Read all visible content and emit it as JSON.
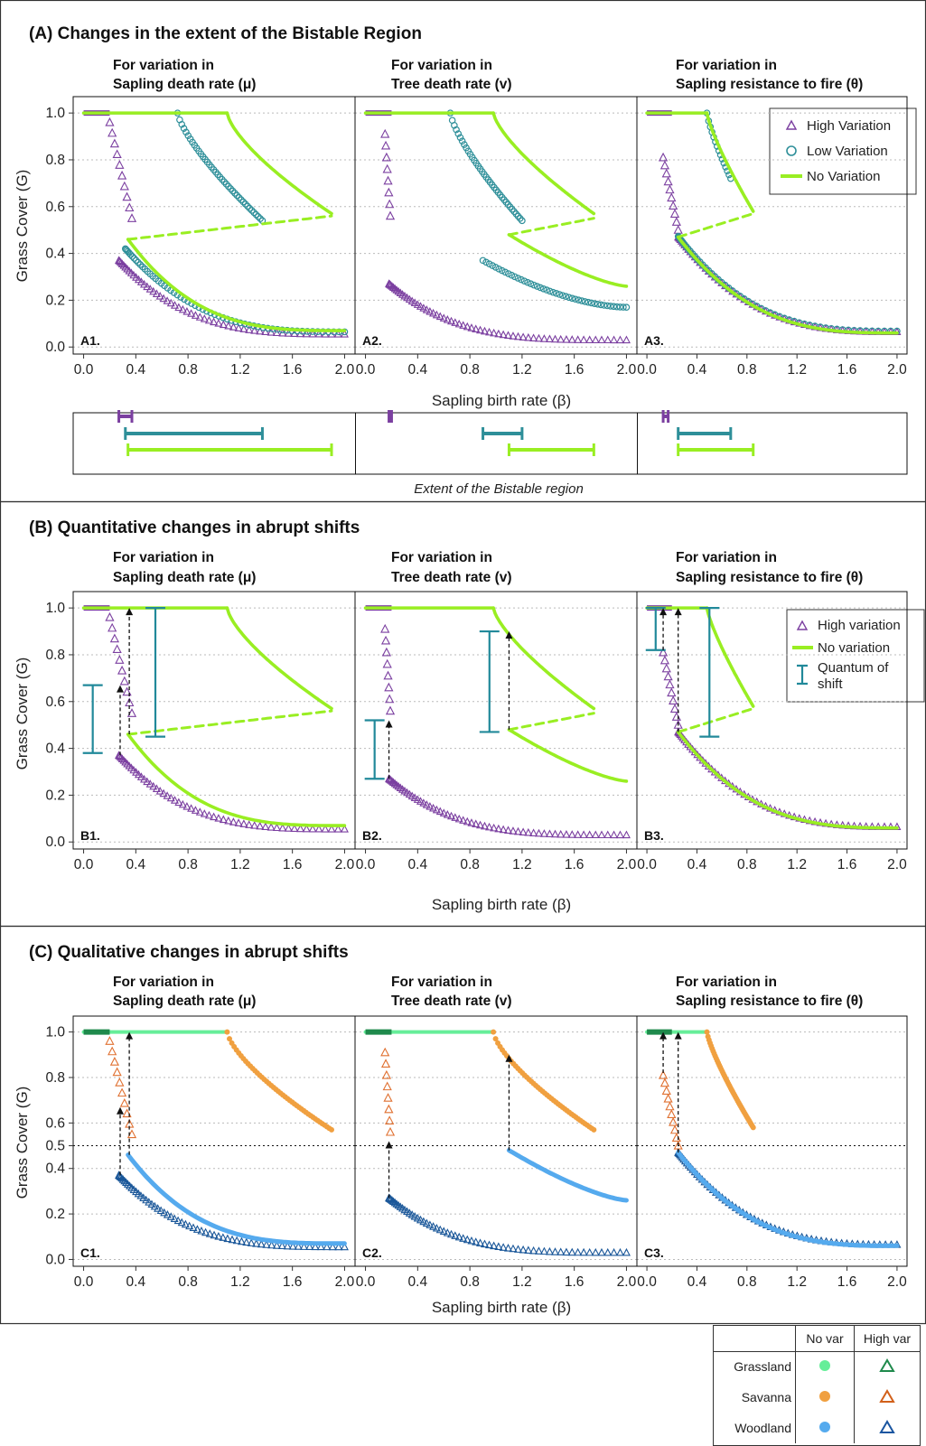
{
  "sections": [
    {
      "id": "A",
      "title": "(A) Changes in the extent of the Bistable Region",
      "caption": "Extent of the Bistable region",
      "legend": [
        {
          "label": "High Variation",
          "marker": "triangle",
          "color": "#7b3fa0"
        },
        {
          "label": "Low Variation",
          "marker": "circle",
          "color": "#2e8f99"
        },
        {
          "label": "No Variation",
          "marker": "line",
          "color": "#99ee22"
        }
      ]
    },
    {
      "id": "B",
      "title": "(B) Quantitative changes in abrupt shifts",
      "legend": [
        {
          "label": "High variation",
          "marker": "triangle",
          "color": "#7b3fa0"
        },
        {
          "label": "No variation",
          "marker": "line",
          "color": "#99ee22"
        },
        {
          "label": "Quantum of shift",
          "marker": "errorbar",
          "color": "#21899a"
        }
      ]
    },
    {
      "id": "C",
      "title": "(C) Qualitative changes in abrupt shifts"
    }
  ],
  "columns": [
    {
      "line1": "For variation in",
      "line2": "Sapling death rate (μ)"
    },
    {
      "line1": "For variation in",
      "line2": "Tree death rate (v)"
    },
    {
      "line1": "For variation in",
      "line2": "Sapling resistance to fire (θ)"
    }
  ],
  "axes": {
    "ylabel": "Grass Cover (G)",
    "xlabel": "Sapling birth rate (β)",
    "xticks": [
      "0.0",
      "0.4",
      "0.8",
      "1.2",
      "1.6",
      "2.0"
    ],
    "yticks": [
      "0.0",
      "0.2",
      "0.4",
      "0.6",
      "0.8",
      "1.0"
    ],
    "yticks_C": [
      "0.0",
      "0.2",
      "0.4",
      "0.5",
      "0.6",
      "0.8",
      "1.0"
    ],
    "xlim": [
      -0.08,
      2.08
    ],
    "ylim": [
      -0.03,
      1.07
    ]
  },
  "panel_labels": {
    "A": [
      "A1.",
      "A2.",
      "A3."
    ],
    "B": [
      "B1.",
      "B2.",
      "B3."
    ],
    "C": [
      "C1.",
      "C2.",
      "C3."
    ]
  },
  "state_table": {
    "headers": [
      "",
      "No var",
      "High var"
    ],
    "rows": [
      {
        "label": "Grassland",
        "color": "#66ee99",
        "tri": "#1f8a4c"
      },
      {
        "label": "Savanna",
        "color": "#f0a040",
        "tri": "#d2601a"
      },
      {
        "label": "Woodland",
        "color": "#55aaee",
        "tri": "#1a55a0"
      }
    ]
  },
  "colors": {
    "high": "#7b3fa0",
    "low": "#2e8f99",
    "none": "#99ee22",
    "quantum": "#21899a",
    "grassland": "#66ee99",
    "savanna": "#f0a040",
    "woodland_light": "#55aaee",
    "woodland_dark": "#1a5799",
    "savanna_tri": "#e07030"
  },
  "chart_data": [
    {
      "type": "scatter",
      "panel": "A1",
      "series": [
        {
          "name": "No Variation",
          "segments": [
            {
              "kind": "line",
              "x": [
                0,
                1.1
              ],
              "y": [
                1.0,
                1.0
              ]
            },
            {
              "kind": "curve",
              "x": [
                1.1,
                1.9
              ],
              "y": [
                1.0,
                0.57
              ]
            },
            {
              "kind": "dashed",
              "x": [
                0.34,
                1.9
              ],
              "y": [
                0.46,
                0.56
              ]
            },
            {
              "kind": "curve",
              "x": [
                0.34,
                2.0
              ],
              "y": [
                0.46,
                0.07
              ]
            }
          ]
        },
        {
          "name": "Low Variation",
          "segments": [
            {
              "kind": "line",
              "x": [
                0,
                0.72
              ],
              "y": [
                1.0,
                1.0
              ]
            },
            {
              "kind": "curve",
              "x": [
                0.72,
                1.37
              ],
              "y": [
                1.0,
                0.54
              ]
            },
            {
              "kind": "curve",
              "x": [
                0.32,
                2.0
              ],
              "y": [
                0.42,
                0.065
              ]
            }
          ]
        },
        {
          "name": "High Variation",
          "segments": [
            {
              "kind": "line",
              "x": [
                0,
                0.2
              ],
              "y": [
                1.0,
                1.0
              ]
            },
            {
              "kind": "curve",
              "x": [
                0.2,
                0.37
              ],
              "y": [
                0.96,
                0.55
              ]
            },
            {
              "kind": "curve",
              "x": [
                0.27,
                2.0
              ],
              "y": [
                0.37,
                0.055
              ]
            }
          ]
        }
      ],
      "bistable_extent": {
        "High Variation": [
          0.27,
          0.37
        ],
        "Low Variation": [
          0.32,
          1.37
        ],
        "No Variation": [
          0.34,
          1.9
        ]
      }
    },
    {
      "type": "scatter",
      "panel": "A2",
      "series": [
        {
          "name": "No Variation",
          "segments": [
            {
              "kind": "line",
              "x": [
                0,
                0.98
              ],
              "y": [
                1.0,
                1.0
              ]
            },
            {
              "kind": "curve",
              "x": [
                0.98,
                1.75
              ],
              "y": [
                1.0,
                0.57
              ]
            },
            {
              "kind": "dashed",
              "x": [
                1.1,
                1.75
              ],
              "y": [
                0.48,
                0.55
              ]
            },
            {
              "kind": "curve",
              "x": [
                1.1,
                2.0
              ],
              "y": [
                0.48,
                0.26
              ]
            }
          ]
        },
        {
          "name": "Low Variation",
          "segments": [
            {
              "kind": "line",
              "x": [
                0,
                0.65
              ],
              "y": [
                1.0,
                1.0
              ]
            },
            {
              "kind": "curve",
              "x": [
                0.65,
                1.2
              ],
              "y": [
                1.0,
                0.54
              ]
            },
            {
              "kind": "curve",
              "x": [
                0.9,
                2.0
              ],
              "y": [
                0.37,
                0.17
              ]
            }
          ]
        },
        {
          "name": "High Variation",
          "segments": [
            {
              "kind": "line",
              "x": [
                0,
                0.2
              ],
              "y": [
                1.0,
                1.0
              ]
            },
            {
              "kind": "curve",
              "x": [
                0.15,
                0.2
              ],
              "y": [
                0.91,
                0.55
              ]
            },
            {
              "kind": "curve",
              "x": [
                0.18,
                2.0
              ],
              "y": [
                0.27,
                0.03
              ]
            }
          ]
        }
      ],
      "bistable_extent": {
        "High Variation": [
          0.18,
          0.2
        ],
        "Low Variation": [
          0.9,
          1.2
        ],
        "No Variation": [
          1.1,
          1.75
        ]
      }
    },
    {
      "type": "scatter",
      "panel": "A3",
      "series": [
        {
          "name": "No Variation",
          "segments": [
            {
              "kind": "line",
              "x": [
                0,
                0.48
              ],
              "y": [
                1.0,
                1.0
              ]
            },
            {
              "kind": "curve",
              "x": [
                0.48,
                0.85
              ],
              "y": [
                1.0,
                0.58
              ]
            },
            {
              "kind": "dashed",
              "x": [
                0.25,
                0.85
              ],
              "y": [
                0.47,
                0.57
              ]
            },
            {
              "kind": "curve",
              "x": [
                0.25,
                2.0
              ],
              "y": [
                0.47,
                0.06
              ]
            }
          ]
        },
        {
          "name": "Low Variation",
          "segments": [
            {
              "kind": "line",
              "x": [
                0,
                0.48
              ],
              "y": [
                1.0,
                1.0
              ]
            },
            {
              "kind": "curve",
              "x": [
                0.48,
                0.67
              ],
              "y": [
                1.0,
                0.72
              ]
            },
            {
              "kind": "curve",
              "x": [
                0.25,
                2.0
              ],
              "y": [
                0.47,
                0.065
              ]
            }
          ]
        },
        {
          "name": "High Variation",
          "segments": [
            {
              "kind": "line",
              "x": [
                0,
                0.2
              ],
              "y": [
                1.0,
                1.0
              ]
            },
            {
              "kind": "curve",
              "x": [
                0.13,
                0.25
              ],
              "y": [
                0.81,
                0.5
              ]
            },
            {
              "kind": "curve",
              "x": [
                0.25,
                2.0
              ],
              "y": [
                0.47,
                0.065
              ]
            }
          ]
        }
      ],
      "bistable_extent": {
        "High Variation": [
          0.13,
          0.17
        ],
        "Low Variation": [
          0.25,
          0.67
        ],
        "No Variation": [
          0.25,
          0.85
        ]
      }
    },
    {
      "type": "scatter",
      "panel": "B1",
      "quantum_of_shift": [
        {
          "x": 0.07,
          "y": [
            0.38,
            0.67
          ]
        },
        {
          "x": 0.55,
          "y": [
            0.45,
            1.0
          ]
        }
      ],
      "arrows": [
        {
          "x": 0.28,
          "y": [
            0.37,
            0.67
          ]
        },
        {
          "x": 0.35,
          "y": [
            0.46,
            1.0
          ]
        }
      ]
    },
    {
      "type": "scatter",
      "panel": "B2",
      "quantum_of_shift": [
        {
          "x": 0.07,
          "y": [
            0.27,
            0.52
          ]
        },
        {
          "x": 0.95,
          "y": [
            0.47,
            0.9
          ]
        }
      ],
      "arrows": [
        {
          "x": 0.18,
          "y": [
            0.27,
            0.52
          ]
        },
        {
          "x": 1.1,
          "y": [
            0.48,
            0.9
          ]
        }
      ]
    },
    {
      "type": "scatter",
      "panel": "B3",
      "quantum_of_shift": [
        {
          "x": 0.07,
          "y": [
            0.82,
            1.0
          ]
        },
        {
          "x": 0.5,
          "y": [
            0.45,
            1.0
          ]
        }
      ],
      "arrows": [
        {
          "x": 0.13,
          "y": [
            0.82,
            1.0
          ]
        },
        {
          "x": 0.25,
          "y": [
            0.47,
            1.0
          ]
        }
      ]
    },
    {
      "type": "scatter",
      "panel": "C1",
      "threshold": 0.5,
      "arrows": [
        {
          "x": 0.28,
          "y": [
            0.37,
            0.67
          ]
        },
        {
          "x": 0.35,
          "y": [
            0.46,
            1.0
          ]
        }
      ]
    },
    {
      "type": "scatter",
      "panel": "C2",
      "threshold": 0.5,
      "arrows": [
        {
          "x": 0.18,
          "y": [
            0.27,
            0.52
          ]
        },
        {
          "x": 1.1,
          "y": [
            0.48,
            0.9
          ]
        }
      ]
    },
    {
      "type": "scatter",
      "panel": "C3",
      "threshold": 0.5,
      "arrows": [
        {
          "x": 0.13,
          "y": [
            0.82,
            1.0
          ]
        },
        {
          "x": 0.25,
          "y": [
            0.47,
            1.0
          ]
        }
      ]
    }
  ]
}
